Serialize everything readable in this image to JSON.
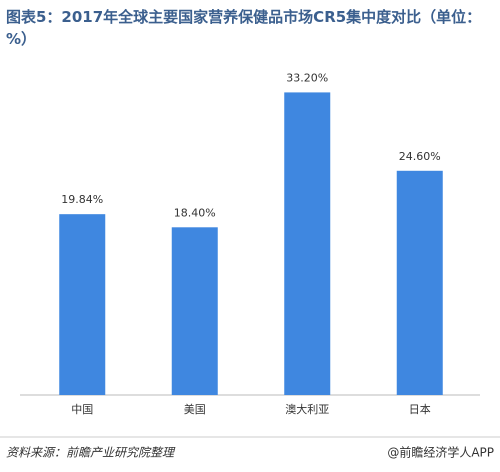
{
  "chart_data": {
    "type": "bar",
    "title": "图表5：2017年全球主要国家营养保健品市场CR5集中度对比（单位：%）",
    "categories": [
      "中国",
      "美国",
      "澳大利亚",
      "日本"
    ],
    "values": [
      19.84,
      18.4,
      33.2,
      24.6
    ],
    "value_labels": [
      "19.84%",
      "18.40%",
      "33.20%",
      "24.60%"
    ],
    "color": "#3f87e0",
    "ylim": [
      0,
      35
    ],
    "source": "资料来源：前瞻产业研究院整理",
    "credit": "@前瞻经济学人APP"
  }
}
